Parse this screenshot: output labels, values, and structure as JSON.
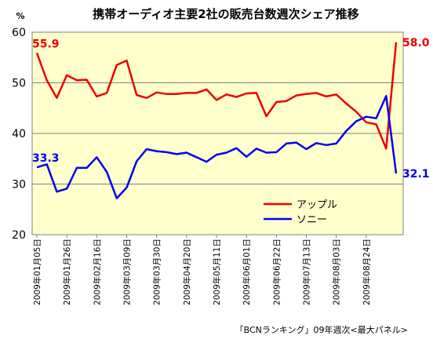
{
  "chart_data": {
    "type": "line",
    "title": "携帯オーディオ主要2社の販売台数週次シェア推移",
    "unit": "%",
    "ylim": [
      20,
      60
    ],
    "yticks": [
      20,
      30,
      40,
      50,
      60
    ],
    "grid": true,
    "legend_position": "inside-bottom-right",
    "x_labels": [
      {
        "index": 0,
        "label": "2009年01月05日"
      },
      {
        "index": 3,
        "label": "2009年01月26日"
      },
      {
        "index": 6,
        "label": "2009年02月16日"
      },
      {
        "index": 9,
        "label": "2009年03月09日"
      },
      {
        "index": 12,
        "label": "2009年03月30日"
      },
      {
        "index": 15,
        "label": "2009年04月20日"
      },
      {
        "index": 18,
        "label": "2009年05月11日"
      },
      {
        "index": 21,
        "label": "2009年06月01日"
      },
      {
        "index": 24,
        "label": "2009年06月22日"
      },
      {
        "index": 27,
        "label": "2009年07月13日"
      },
      {
        "index": 30,
        "label": "2009年08月03日"
      },
      {
        "index": 33,
        "label": "2009年08月24日"
      }
    ],
    "series": [
      {
        "name": "アップル",
        "color": "#ee0000",
        "values": [
          55.9,
          50.5,
          47.0,
          51.5,
          50.5,
          50.6,
          47.3,
          48.0,
          53.5,
          54.4,
          47.6,
          47.0,
          48.1,
          47.8,
          47.8,
          48.0,
          48.0,
          48.7,
          46.6,
          47.7,
          47.2,
          47.9,
          48.0,
          43.4,
          46.2,
          46.4,
          47.5,
          47.8,
          48.0,
          47.3,
          47.7,
          45.9,
          44.3,
          42.2,
          41.8,
          37.0,
          58.0
        ],
        "first_label": "55.9",
        "last_label": "58.0"
      },
      {
        "name": "ソニー",
        "color": "#0000ee",
        "values": [
          33.3,
          33.9,
          28.5,
          29.1,
          33.2,
          33.2,
          35.3,
          32.4,
          27.2,
          29.3,
          34.5,
          36.9,
          36.5,
          36.3,
          35.9,
          36.2,
          35.3,
          34.4,
          35.8,
          36.2,
          37.1,
          35.4,
          37.0,
          36.2,
          36.3,
          38.0,
          38.2,
          36.9,
          38.1,
          37.7,
          38.0,
          40.5,
          42.4,
          43.3,
          43.0,
          47.4,
          32.1
        ],
        "first_label": "33.3",
        "last_label": "32.1"
      }
    ],
    "source": "「BCNランキング」09年週次<最大パネル>"
  }
}
